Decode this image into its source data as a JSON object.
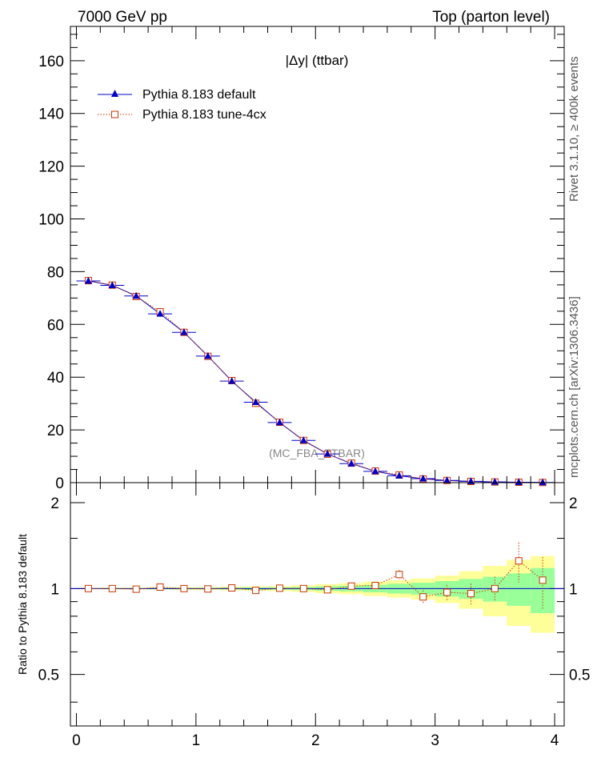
{
  "header": {
    "left": "7000 GeV pp",
    "right": "Top (parton level)"
  },
  "side_labels": {
    "rivet": "Rivet 3.1.10, ≥ 400k events",
    "mcplots": "mcplots.cern.ch [arXiv:1306.3436]"
  },
  "colors": {
    "default": "#0000cc",
    "tune": "#cc3300",
    "band_inner": "#99ff99",
    "band_outer": "#ffff99"
  },
  "chart_data": [
    {
      "type": "line",
      "title": "|Δy| (ttbar)",
      "watermark": "(MC_FBA_TTBAR)",
      "xlabel": "",
      "ylabel": "",
      "xlim": [
        -0.05,
        4.08
      ],
      "ylim": [
        0,
        173
      ],
      "yticks": [
        0,
        20,
        40,
        60,
        80,
        100,
        120,
        140,
        160
      ],
      "x": [
        0.1,
        0.3,
        0.5,
        0.7,
        0.9,
        1.1,
        1.3,
        1.5,
        1.7,
        1.9,
        2.1,
        2.3,
        2.5,
        2.7,
        2.9,
        3.1,
        3.3,
        3.5,
        3.7,
        3.9
      ],
      "series": [
        {
          "name": "Pythia 8.183 default",
          "marker": "triangle",
          "values": [
            76.5,
            74.8,
            70.8,
            64.0,
            57.0,
            48.0,
            38.5,
            30.5,
            22.8,
            16.0,
            10.9,
            7.2,
            4.3,
            2.6,
            1.5,
            0.85,
            0.48,
            0.26,
            0.14,
            0.06
          ]
        },
        {
          "name": "Pythia 8.183 tune-4cx",
          "marker": "open-square",
          "values": [
            76.6,
            74.9,
            70.6,
            64.8,
            57.0,
            47.9,
            38.7,
            30.1,
            22.9,
            16.0,
            10.8,
            7.4,
            4.4,
            2.9,
            1.4,
            0.82,
            0.46,
            0.26,
            0.17,
            0.065
          ]
        }
      ]
    },
    {
      "type": "line",
      "title": "",
      "xlabel": "",
      "ylabel": "Ratio to Pythia 8.183 default",
      "xlim": [
        -0.05,
        4.08
      ],
      "ylim": [
        0.33,
        2.35
      ],
      "yticks": [
        0.5,
        1,
        2
      ],
      "xticks": [
        0,
        1,
        2,
        3,
        4
      ],
      "x": [
        0.1,
        0.3,
        0.5,
        0.7,
        0.9,
        1.1,
        1.3,
        1.5,
        1.7,
        1.9,
        2.1,
        2.3,
        2.5,
        2.7,
        2.9,
        3.1,
        3.3,
        3.5,
        3.7,
        3.9
      ],
      "bands": {
        "inner_halfwidth": [
          0.003,
          0.004,
          0.004,
          0.005,
          0.006,
          0.006,
          0.008,
          0.009,
          0.01,
          0.013,
          0.018,
          0.022,
          0.03,
          0.04,
          0.048,
          0.062,
          0.08,
          0.1,
          0.13,
          0.18
        ],
        "outer_halfwidth": [
          0.006,
          0.008,
          0.008,
          0.01,
          0.012,
          0.012,
          0.016,
          0.018,
          0.02,
          0.026,
          0.036,
          0.044,
          0.058,
          0.07,
          0.085,
          0.11,
          0.15,
          0.2,
          0.26,
          0.3
        ]
      },
      "series": [
        {
          "name": "Pythia 8.183 tune-4cx",
          "marker": "open-square",
          "values": [
            1.0,
            1.0,
            0.995,
            1.012,
            1.0,
            0.997,
            1.005,
            0.985,
            1.003,
            1.0,
            0.99,
            1.02,
            1.025,
            1.12,
            0.935,
            0.97,
            0.96,
            1.0,
            1.25,
            1.07
          ],
          "errors": [
            0.004,
            0.005,
            0.005,
            0.006,
            0.006,
            0.007,
            0.008,
            0.009,
            0.011,
            0.013,
            0.018,
            0.02,
            0.03,
            0.04,
            0.05,
            0.06,
            0.08,
            0.1,
            0.2,
            0.22
          ]
        }
      ]
    }
  ]
}
